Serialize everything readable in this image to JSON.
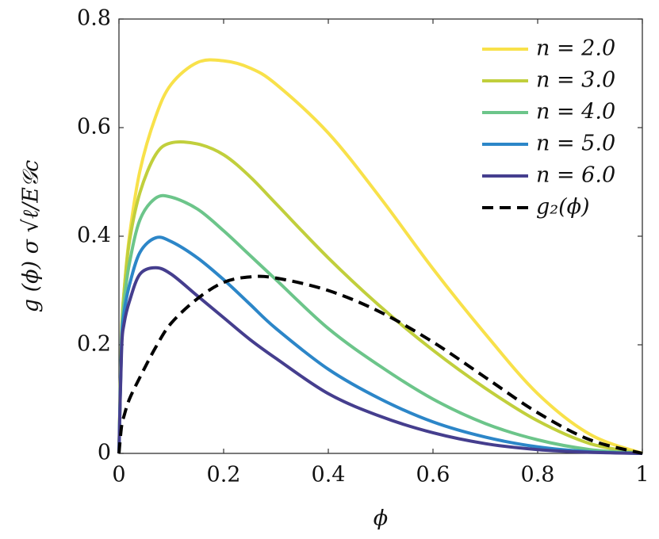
{
  "chart_data": {
    "type": "line",
    "x_label": "ϕ",
    "y_label": "g (ϕ) σ √ℓ/E𝒢c",
    "x": [
      0,
      0.005,
      0.01,
      0.02,
      0.04,
      0.07,
      0.1,
      0.15,
      0.2,
      0.25,
      0.3,
      0.4,
      0.5,
      0.6,
      0.7,
      0.8,
      0.9,
      1
    ],
    "series": [
      {
        "name": "n = 2.0",
        "color": "#f8e14a",
        "dash": false,
        "values": [
          0,
          0.22,
          0.3,
          0.4,
          0.52,
          0.62,
          0.68,
          0.72,
          0.723,
          0.71,
          0.68,
          0.59,
          0.47,
          0.34,
          0.22,
          0.11,
          0.035,
          0
        ]
      },
      {
        "name": "n = 3.0",
        "color": "#c1cf3c",
        "dash": false,
        "values": [
          0,
          0.22,
          0.3,
          0.39,
          0.48,
          0.55,
          0.572,
          0.57,
          0.55,
          0.51,
          0.46,
          0.36,
          0.27,
          0.19,
          0.12,
          0.06,
          0.018,
          0
        ]
      },
      {
        "name": "n = 4.0",
        "color": "#6cc58a",
        "dash": false,
        "values": [
          0,
          0.21,
          0.28,
          0.35,
          0.43,
          0.47,
          0.472,
          0.45,
          0.41,
          0.365,
          0.32,
          0.23,
          0.16,
          0.1,
          0.055,
          0.025,
          0.007,
          0
        ]
      },
      {
        "name": "n = 5.0",
        "color": "#2c86c8",
        "dash": false,
        "values": [
          0,
          0.2,
          0.26,
          0.31,
          0.37,
          0.397,
          0.39,
          0.36,
          0.32,
          0.275,
          0.23,
          0.155,
          0.1,
          0.058,
          0.03,
          0.012,
          0.003,
          0
        ]
      },
      {
        "name": "n = 6.0",
        "color": "#453e8e",
        "dash": false,
        "values": [
          0,
          0.19,
          0.24,
          0.28,
          0.33,
          0.342,
          0.33,
          0.29,
          0.25,
          0.21,
          0.175,
          0.11,
          0.068,
          0.038,
          0.018,
          0.007,
          0.002,
          0
        ]
      },
      {
        "name": "g₂(ϕ)",
        "color": "#000000",
        "dash": true,
        "values": [
          0,
          0.05,
          0.07,
          0.1,
          0.14,
          0.195,
          0.24,
          0.285,
          0.315,
          0.325,
          0.323,
          0.3,
          0.26,
          0.205,
          0.14,
          0.075,
          0.025,
          0
        ]
      }
    ],
    "xlim": [
      0,
      1
    ],
    "xticks": [
      0,
      0.2,
      0.4,
      0.6,
      0.8,
      1
    ],
    "ylim": [
      0,
      0.8
    ],
    "yticks": [
      0,
      0.2,
      0.4,
      0.6,
      0.8
    ],
    "legend": "upper-right"
  }
}
